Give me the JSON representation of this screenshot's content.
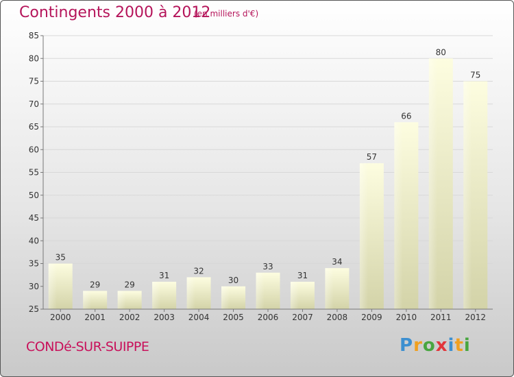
{
  "header": {
    "title": "Contingents 2000 à 2012",
    "subtitle": "(en milliers d'€)"
  },
  "footer": {
    "commune": "CONDé-SUR-SUIPPE",
    "logo": "Proxiti"
  },
  "colors": {
    "title": "#b5145a",
    "bar_top": "#fdfde0",
    "bar_bottom": "#d3d3a8"
  },
  "chart_data": {
    "type": "bar",
    "title": "Contingents 2000 à 2012",
    "subtitle": "(en milliers d'€)",
    "xlabel": "",
    "ylabel": "",
    "categories": [
      "2000",
      "2001",
      "2002",
      "2003",
      "2004",
      "2005",
      "2006",
      "2007",
      "2008",
      "2009",
      "2010",
      "2011",
      "2012"
    ],
    "values": [
      35,
      29,
      29,
      31,
      32,
      30,
      33,
      31,
      34,
      57,
      66,
      80,
      75
    ],
    "ylim": [
      25,
      85
    ],
    "yticks": [
      25,
      30,
      35,
      40,
      45,
      50,
      55,
      60,
      65,
      70,
      75,
      80,
      85
    ],
    "grid": true,
    "legend": "none"
  }
}
